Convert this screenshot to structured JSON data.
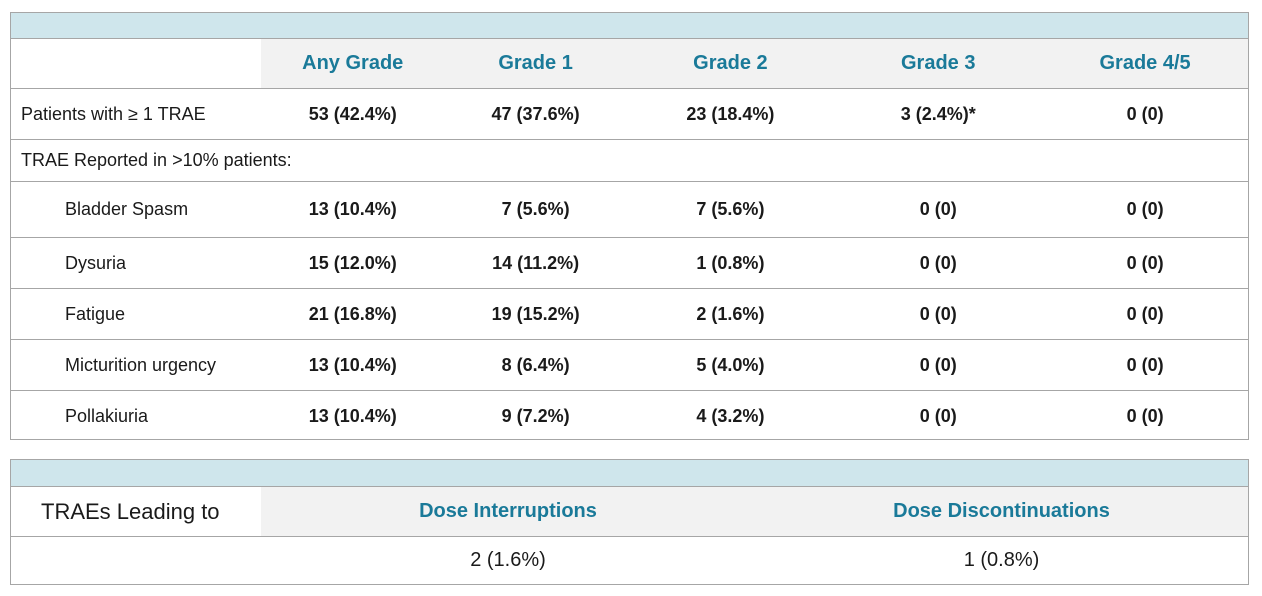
{
  "trae_table": {
    "headers": {
      "any_grade": "Any Grade",
      "grade1": "Grade 1",
      "grade2": "Grade 2",
      "grade3": "Grade 3",
      "grade45": "Grade 4/5"
    },
    "patients_row": {
      "label": "Patients with ≥ 1 TRAE",
      "any_grade": "53 (42.4%)",
      "grade1": "47 (37.6%)",
      "grade2": "23 (18.4%)",
      "grade3": "3 (2.4%)*",
      "grade45": "0 (0)"
    },
    "section_label": "TRAE Reported in >10% patients:",
    "rows": [
      {
        "label": "Bladder Spasm",
        "any_grade": "13 (10.4%)",
        "grade1": "7 (5.6%)",
        "grade2": "7 (5.6%)",
        "grade3": "0 (0)",
        "grade45": "0 (0)"
      },
      {
        "label": "Dysuria",
        "any_grade": "15 (12.0%)",
        "grade1": "14 (11.2%)",
        "grade2": "1 (0.8%)",
        "grade3": "0 (0)",
        "grade45": "0 (0)"
      },
      {
        "label": "Fatigue",
        "any_grade": "21 (16.8%)",
        "grade1": "19 (15.2%)",
        "grade2": "2 (1.6%)",
        "grade3": "0 (0)",
        "grade45": "0 (0)"
      },
      {
        "label": "Micturition urgency",
        "any_grade": "13 (10.4%)",
        "grade1": "8 (6.4%)",
        "grade2": "5 (4.0%)",
        "grade3": "0 (0)",
        "grade45": "0 (0)"
      },
      {
        "label": "Pollakiuria",
        "any_grade": "13 (10.4%)",
        "grade1": "9 (7.2%)",
        "grade2": "4 (3.2%)",
        "grade3": "0 (0)",
        "grade45": "0 (0)"
      }
    ]
  },
  "leading_table": {
    "label": "TRAEs Leading to",
    "col1_header": "Dose Interruptions",
    "col2_header": "Dose Discontinuations",
    "col1_value": "2 (1.6%)",
    "col2_value": "1 (0.8%)"
  },
  "colors": {
    "band": "#cfe6ec",
    "header_text": "#1a7a99",
    "header_shade": "#f2f2f2",
    "border": "#a6a6a6"
  }
}
